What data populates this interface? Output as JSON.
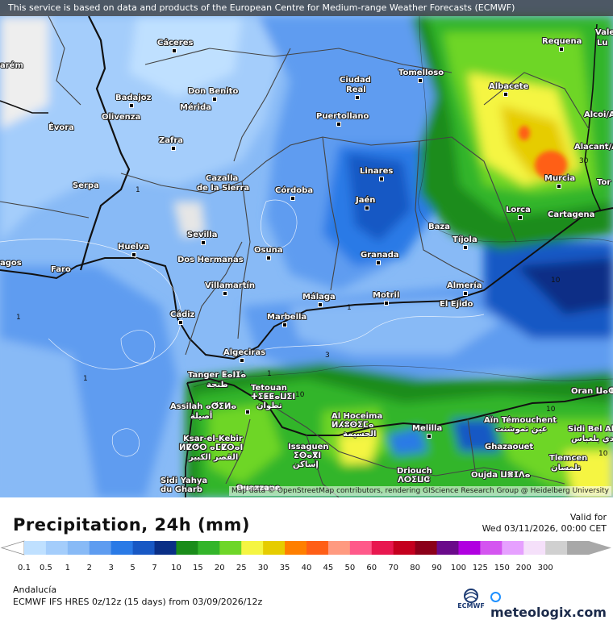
{
  "notice": "This service is based on data and products of the European Centre for Medium-range Weather Forecasts (ECMWF)",
  "attribution": "Map data © OpenStreetMap contributors, rendering GIScience Research Group @ Heidelberg University",
  "title": "Precipitation, 24h (mm)",
  "valid_label": "Valid for",
  "valid_time": "Wed 03/11/2026, 00:00 CET",
  "region": "Andalucía",
  "model_info": "ECMWF IFS HRES 0z/12z (15 days) from  03/09/2026/12z",
  "ecmwf_logo": "ECMWF",
  "brand": "meteologix.com",
  "legend": {
    "ticks": [
      "0.1",
      "0.5",
      "1",
      "2",
      "3",
      "5",
      "7",
      "10",
      "15",
      "20",
      "25",
      "30",
      "35",
      "40",
      "45",
      "50",
      "60",
      "70",
      "80",
      "90",
      "100",
      "125",
      "150",
      "200",
      "300"
    ],
    "colors": [
      "#bfe0ff",
      "#a4cdfb",
      "#88baf6",
      "#5e9cf0",
      "#2a7ae6",
      "#1858c4",
      "#0a2f86",
      "#1a8c1a",
      "#33b52a",
      "#6ed628",
      "#f5f542",
      "#e6cc00",
      "#ff7f00",
      "#ff5e16",
      "#ff9a80",
      "#ff5a8a",
      "#e8174f",
      "#c4001e",
      "#8b0019",
      "#6a0a8a",
      "#b000e0",
      "#d455f0",
      "#e6a0ff",
      "#f5e0fa",
      "#d0d0d0",
      "#a8a8a8"
    ]
  },
  "contour_labels": [
    "1",
    "1",
    "1",
    "1",
    "1",
    "1",
    "3",
    "10",
    "10",
    "10",
    "10",
    "30"
  ],
  "cities": [
    {
      "name": "Cáceres"
    },
    {
      "name": "Requena"
    },
    {
      "name": "Vale"
    },
    {
      "name": "Lu"
    },
    {
      "name": "arém"
    },
    {
      "name": "Tomelloso"
    },
    {
      "name": "Ciudad"
    },
    {
      "name": "Real"
    },
    {
      "name": "Don Benito"
    },
    {
      "name": "Badajoz"
    },
    {
      "name": "Mérida"
    },
    {
      "name": "Albacete"
    },
    {
      "name": "Alcoi/A"
    },
    {
      "name": "Olivenza"
    },
    {
      "name": "Puertollano"
    },
    {
      "name": "Évora"
    },
    {
      "name": "Zafra"
    },
    {
      "name": "Alacant/A"
    },
    {
      "name": "Linares"
    },
    {
      "name": "Murcia"
    },
    {
      "name": "Serpa"
    },
    {
      "name": "Cazalla"
    },
    {
      "name": "de la Sierra"
    },
    {
      "name": "Córdoba"
    },
    {
      "name": "Jaén"
    },
    {
      "name": "Tor"
    },
    {
      "name": "Lorca"
    },
    {
      "name": "Cartagena"
    },
    {
      "name": "Sevilla"
    },
    {
      "name": "Baza"
    },
    {
      "name": "Huelva"
    },
    {
      "name": "Tíjola"
    },
    {
      "name": "agos"
    },
    {
      "name": "Faro"
    },
    {
      "name": "Osuna"
    },
    {
      "name": "Dos Hermanas"
    },
    {
      "name": "Granada"
    },
    {
      "name": "Villamartín"
    },
    {
      "name": "Almería"
    },
    {
      "name": "Málaga"
    },
    {
      "name": "Motril"
    },
    {
      "name": "El Ejido"
    },
    {
      "name": "Cádiz"
    },
    {
      "name": "Marbella"
    },
    {
      "name": "Algeciras"
    },
    {
      "name": "Tanger ⵟⴰⵏⵊⴰ"
    },
    {
      "name": "طنجة"
    },
    {
      "name": "Tetouan"
    },
    {
      "name": "ⵜⵉⵟⵟⴰⵡⵉⵏ"
    },
    {
      "name": "تطوان"
    },
    {
      "name": "Oran ⵡⴰⵀⵔⴰⵏ"
    },
    {
      "name": "Assilah ⴰⵚⵉⵍⴰ"
    },
    {
      "name": "أصيلة"
    },
    {
      "name": "Al Hoceima"
    },
    {
      "name": "ⵍⵃⵓⵙⵉⵎⴰ"
    },
    {
      "name": "الحسيمة"
    },
    {
      "name": "Aïn Témouchent"
    },
    {
      "name": "عين تموشنت"
    },
    {
      "name": "Sidi Bel Ab"
    },
    {
      "name": "سيدي بلعباس"
    },
    {
      "name": "Melilla"
    },
    {
      "name": "Ksar-el-Kebir"
    },
    {
      "name": "ⵍⵇⵚⵔ ⴰⵎⵇⵔⴰⵏ"
    },
    {
      "name": "القصر الكبير"
    },
    {
      "name": "Issaguen"
    },
    {
      "name": "ⵉⵙⴰⴳⵏ"
    },
    {
      "name": "إساكن"
    },
    {
      "name": "Ghazaouet"
    },
    {
      "name": "Tlemcen"
    },
    {
      "name": "تلمسان"
    },
    {
      "name": "Driouch"
    },
    {
      "name": "ⴷⵔⵉⵡⵛ"
    },
    {
      "name": "Oujda ⵡⴻⵊⴷⴰ"
    },
    {
      "name": "Sidi Yahya"
    },
    {
      "name": "du Gharb"
    },
    {
      "name": "Ouazzane"
    }
  ]
}
